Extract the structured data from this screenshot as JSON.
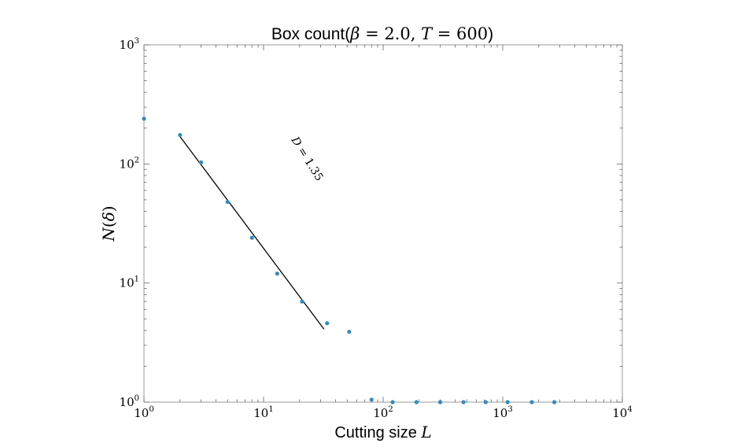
{
  "chart_data": {
    "type": "scatter",
    "title": {
      "prefix": "Box count(",
      "beta_sym": "β",
      "eq1": " = 2.0, ",
      "t_sym": "T",
      "eq2": " = 600",
      "suffix": ")"
    },
    "xlabel": {
      "text": "Cutting size ",
      "var": "L"
    },
    "ylabel": {
      "var": "N",
      "open": "(",
      "delta": "δ",
      "close": ")"
    },
    "x_scale": "log",
    "y_scale": "log",
    "xlim": [
      1,
      10000
    ],
    "ylim": [
      1,
      1000
    ],
    "x_ticks": [
      {
        "value": 1,
        "base": "10",
        "exp": "0"
      },
      {
        "value": 10,
        "base": "10",
        "exp": "1"
      },
      {
        "value": 100,
        "base": "10",
        "exp": "2"
      },
      {
        "value": 1000,
        "base": "10",
        "exp": "3"
      },
      {
        "value": 10000,
        "base": "10",
        "exp": "4"
      }
    ],
    "y_ticks": [
      {
        "value": 1,
        "base": "10",
        "exp": "0"
      },
      {
        "value": 10,
        "base": "10",
        "exp": "1"
      },
      {
        "value": 100,
        "base": "10",
        "exp": "2"
      },
      {
        "value": 1000,
        "base": "10",
        "exp": "3"
      }
    ],
    "grid": false,
    "series": [
      {
        "color": "#348ABD",
        "points": [
          {
            "x": 1,
            "y": 240
          },
          {
            "x": 2,
            "y": 175
          },
          {
            "x": 3,
            "y": 103
          },
          {
            "x": 5,
            "y": 48
          },
          {
            "x": 8,
            "y": 24
          },
          {
            "x": 13,
            "y": 12
          },
          {
            "x": 21,
            "y": 7
          },
          {
            "x": 34,
            "y": 4.6
          },
          {
            "x": 52,
            "y": 3.9
          },
          {
            "x": 80,
            "y": 1.05
          },
          {
            "x": 120,
            "y": 1
          },
          {
            "x": 190,
            "y": 1
          },
          {
            "x": 300,
            "y": 1
          },
          {
            "x": 470,
            "y": 1
          },
          {
            "x": 720,
            "y": 1
          },
          {
            "x": 1100,
            "y": 1
          },
          {
            "x": 1750,
            "y": 1
          },
          {
            "x": 2700,
            "y": 1
          }
        ]
      }
    ],
    "fit_line": {
      "color": "#000000",
      "x": [
        2,
        32
      ],
      "y": [
        170,
        4.1
      ]
    },
    "annotation": {
      "var": "D",
      "eq": " = 1.35",
      "x": 17,
      "y": 160,
      "rotation_deg": 58
    }
  }
}
